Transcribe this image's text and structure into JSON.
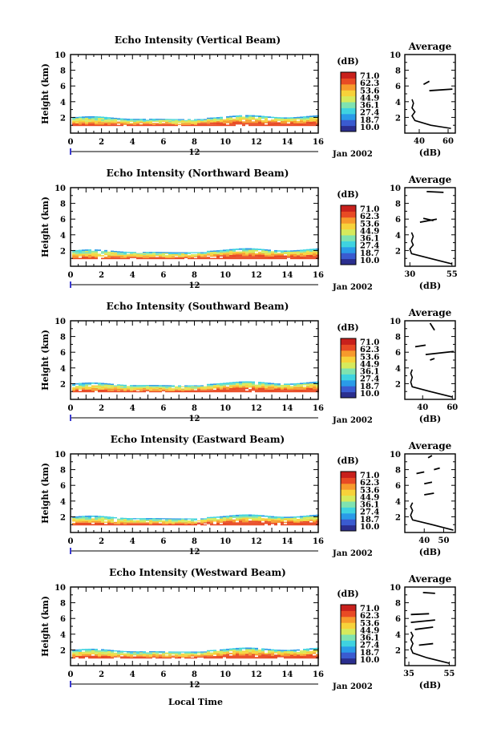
{
  "figure": {
    "xlabel": "Local Time",
    "day_label": "12",
    "date_label": "Jan 2002",
    "cbar_unit": "(dB)",
    "cbar_ticks": [
      "71.0",
      "62.3",
      "53.6",
      "44.9",
      "36.1",
      "27.4",
      "18.7",
      "10.0"
    ],
    "avg_title": "Average",
    "avg_xlabel": "(dB)",
    "colors": [
      "#2b2f8f",
      "#3a5bd0",
      "#2a9be8",
      "#3fd3e0",
      "#7fe3b0",
      "#d6ea5c",
      "#f7d23a",
      "#f79a2c",
      "#e84a24",
      "#c8201c"
    ]
  },
  "chart_data": [
    {
      "type": "heatmap",
      "title": "Echo Intensity (Vertical Beam)",
      "ylabel": "Height (km)",
      "xlim": [
        0,
        16
      ],
      "ylim": [
        0,
        10
      ],
      "xticks": [
        0,
        2,
        4,
        6,
        8,
        10,
        12,
        14,
        16
      ],
      "yticks": [
        2,
        4,
        6,
        8,
        10
      ],
      "zlim": [
        10.0,
        71.0
      ],
      "echo_top_km": 2.0,
      "avg": {
        "xticks": [
          40,
          60
        ],
        "xlim": [
          30,
          65
        ],
        "ylim": [
          0,
          10
        ],
        "yticks": [
          2,
          4,
          6,
          8,
          10
        ],
        "profile": [
          [
            62,
            0.6
          ],
          [
            48,
            1.0
          ],
          [
            37,
            1.6
          ],
          [
            35,
            2.2
          ],
          [
            37,
            2.7
          ],
          [
            35,
            3.2
          ],
          [
            36,
            3.8
          ],
          [
            35,
            4.3
          ]
        ],
        "segments": [
          [
            [
              47,
              5.4
            ],
            [
              63,
              5.6
            ]
          ],
          [
            [
              43,
              6.2
            ],
            [
              47,
              6.6
            ]
          ]
        ]
      }
    },
    {
      "type": "heatmap",
      "title": "Echo Intensity (Northward Beam)",
      "ylabel": "Height (km)",
      "xlim": [
        0,
        16
      ],
      "ylim": [
        0,
        10
      ],
      "xticks": [
        0,
        2,
        4,
        6,
        8,
        10,
        12,
        14,
        16
      ],
      "yticks": [
        2,
        4,
        6,
        8,
        10
      ],
      "zlim": [
        10.0,
        71.0
      ],
      "echo_top_km": 2.0,
      "avg": {
        "xticks": [
          30,
          55
        ],
        "xlim": [
          27,
          57
        ],
        "ylim": [
          0,
          10
        ],
        "yticks": [
          2,
          4,
          6,
          8,
          10
        ],
        "profile": [
          [
            55,
            0.3
          ],
          [
            42,
            1.0
          ],
          [
            31,
            1.6
          ],
          [
            30,
            2.2
          ],
          [
            32,
            2.7
          ],
          [
            31,
            3.2
          ],
          [
            32,
            3.8
          ],
          [
            31,
            4.3
          ]
        ],
        "segments": [
          [
            [
              36,
              5.6
            ],
            [
              46,
              6.0
            ]
          ],
          [
            [
              38,
              6.1
            ],
            [
              44,
              5.8
            ]
          ],
          [
            [
              40,
              9.5
            ],
            [
              50,
              9.4
            ]
          ]
        ]
      }
    },
    {
      "type": "heatmap",
      "title": "Echo Intensity (Southward Beam)",
      "ylabel": "Height (km)",
      "xlim": [
        0,
        16
      ],
      "ylim": [
        0,
        10
      ],
      "xticks": [
        0,
        2,
        4,
        6,
        8,
        10,
        12,
        14,
        16
      ],
      "yticks": [
        2,
        4,
        6,
        8,
        10
      ],
      "zlim": [
        10.0,
        71.0
      ],
      "echo_top_km": 2.0,
      "avg": {
        "xticks": [
          40,
          60
        ],
        "xlim": [
          28,
          62
        ],
        "ylim": [
          0,
          10
        ],
        "yticks": [
          2,
          4,
          6,
          8,
          10
        ],
        "profile": [
          [
            60,
            0.3
          ],
          [
            45,
            1.0
          ],
          [
            33,
            1.6
          ],
          [
            32,
            2.2
          ],
          [
            33,
            2.8
          ],
          [
            32,
            3.3
          ],
          [
            33,
            3.8
          ]
        ],
        "segments": [
          [
            [
              42,
              5.7
            ],
            [
              61,
              6.1
            ]
          ],
          [
            [
              35,
              6.7
            ],
            [
              42,
              6.9
            ]
          ],
          [
            [
              45,
              5.0
            ],
            [
              48,
              5.2
            ]
          ],
          [
            [
              45,
              9.7
            ],
            [
              48,
              8.8
            ]
          ]
        ]
      }
    },
    {
      "type": "heatmap",
      "title": "Echo Intensity (Eastward Beam)",
      "ylabel": "Height (km)",
      "xlim": [
        0,
        16
      ],
      "ylim": [
        0,
        10
      ],
      "xticks": [
        0,
        2,
        4,
        6,
        8,
        10,
        12,
        14,
        16
      ],
      "yticks": [
        2,
        4,
        6,
        8,
        10
      ],
      "zlim": [
        10.0,
        71.0
      ],
      "echo_top_km": 2.0,
      "avg": {
        "xticks": [
          40,
          50
        ],
        "xlim": [
          30,
          56
        ],
        "ylim": [
          0,
          10
        ],
        "yticks": [
          2,
          4,
          6,
          8,
          10
        ],
        "profile": [
          [
            55,
            0.3
          ],
          [
            44,
            1.0
          ],
          [
            34,
            1.6
          ],
          [
            33,
            2.2
          ],
          [
            34,
            2.8
          ],
          [
            33,
            3.3
          ],
          [
            34,
            3.8
          ]
        ],
        "segments": [
          [
            [
              36,
              7.5
            ],
            [
              40,
              7.7
            ]
          ],
          [
            [
              40,
              6.2
            ],
            [
              44,
              6.4
            ]
          ],
          [
            [
              40,
              4.8
            ],
            [
              45,
              5.0
            ]
          ],
          [
            [
              45,
              8.0
            ],
            [
              48,
              8.2
            ]
          ],
          [
            [
              42,
              9.5
            ],
            [
              44,
              9.8
            ]
          ]
        ]
      }
    },
    {
      "type": "heatmap",
      "title": "Echo Intensity (Westward Beam)",
      "ylabel": "Height (km)",
      "xlim": [
        0,
        16
      ],
      "ylim": [
        0,
        10
      ],
      "xticks": [
        0,
        2,
        4,
        6,
        8,
        10,
        12,
        14,
        16
      ],
      "yticks": [
        2,
        4,
        6,
        8,
        10
      ],
      "zlim": [
        10.0,
        71.0
      ],
      "echo_top_km": 2.0,
      "avg": {
        "xticks": [
          35,
          55
        ],
        "xlim": [
          33,
          58
        ],
        "ylim": [
          0,
          10
        ],
        "yticks": [
          2,
          4,
          6,
          8,
          10
        ],
        "profile": [
          [
            55,
            0.3
          ],
          [
            44,
            1.0
          ],
          [
            37,
            1.6
          ],
          [
            36,
            2.2
          ],
          [
            37,
            2.8
          ],
          [
            36,
            3.3
          ],
          [
            37,
            3.8
          ],
          [
            36,
            4.3
          ]
        ],
        "segments": [
          [
            [
              36,
              6.5
            ],
            [
              45,
              6.6
            ]
          ],
          [
            [
              36,
              5.5
            ],
            [
              48,
              5.8
            ]
          ],
          [
            [
              38,
              4.6
            ],
            [
              47,
              4.9
            ]
          ],
          [
            [
              40,
              2.6
            ],
            [
              47,
              2.8
            ]
          ],
          [
            [
              42,
              9.3
            ],
            [
              48,
              9.2
            ]
          ]
        ]
      }
    }
  ]
}
